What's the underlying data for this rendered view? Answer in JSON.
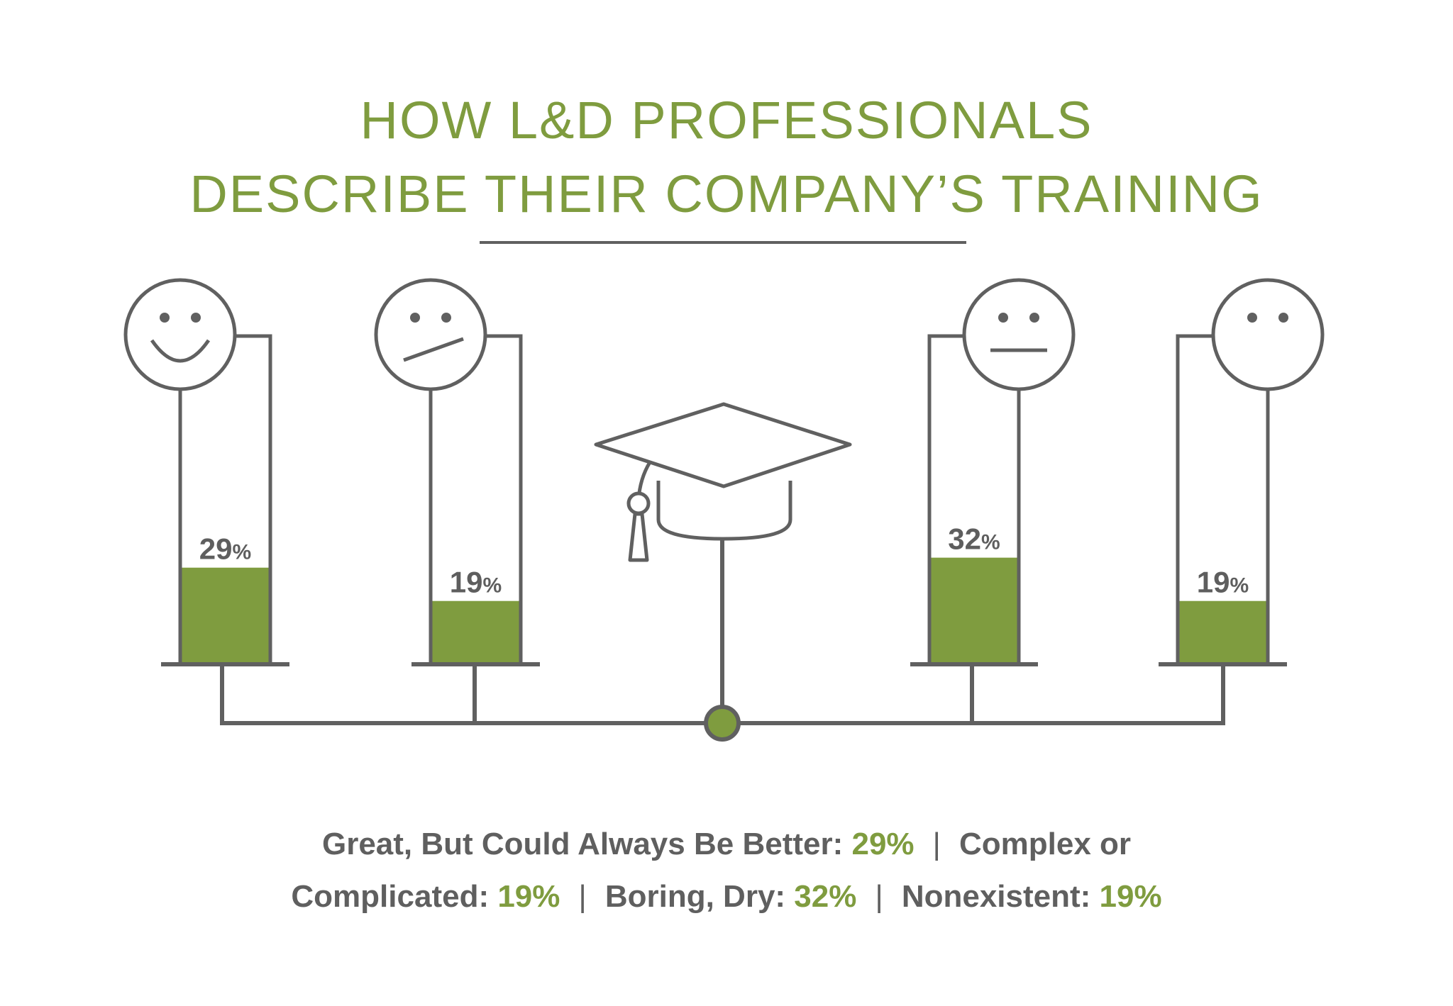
{
  "title": {
    "line1": "HOW L&D PROFESSIONALS",
    "line2": "DESCRIBE THEIR COMPANY’S TRAINING"
  },
  "colors": {
    "accent": "#7f9c3f",
    "line": "#606060",
    "text": "#5f5f5f"
  },
  "chart_data": {
    "type": "bar",
    "categories": [
      "Great, But Could Always Be Better",
      "Complex or Complicated",
      "Boring, Dry",
      "Nonexistent"
    ],
    "values": [
      29,
      19,
      32,
      19
    ],
    "value_labels": [
      "29",
      "19",
      "32",
      "19"
    ],
    "unit": "%",
    "faces": [
      "smile-face-icon",
      "skeptical-face-icon",
      "neutral-face-icon",
      "blank-face-icon"
    ],
    "center_icon": "graduation-cap-icon",
    "ylim": [
      0,
      100
    ]
  },
  "caption": {
    "line1": [
      {
        "label": "Great, But Could Always Be Better: ",
        "value": "29%"
      },
      {
        "label": "Complex or",
        "value": ""
      }
    ],
    "line2": [
      {
        "label": "Complicated: ",
        "value": "19%"
      },
      {
        "label": "Boring, Dry: ",
        "value": "32%"
      },
      {
        "label": "Nonexistent: ",
        "value": "19%"
      }
    ]
  }
}
